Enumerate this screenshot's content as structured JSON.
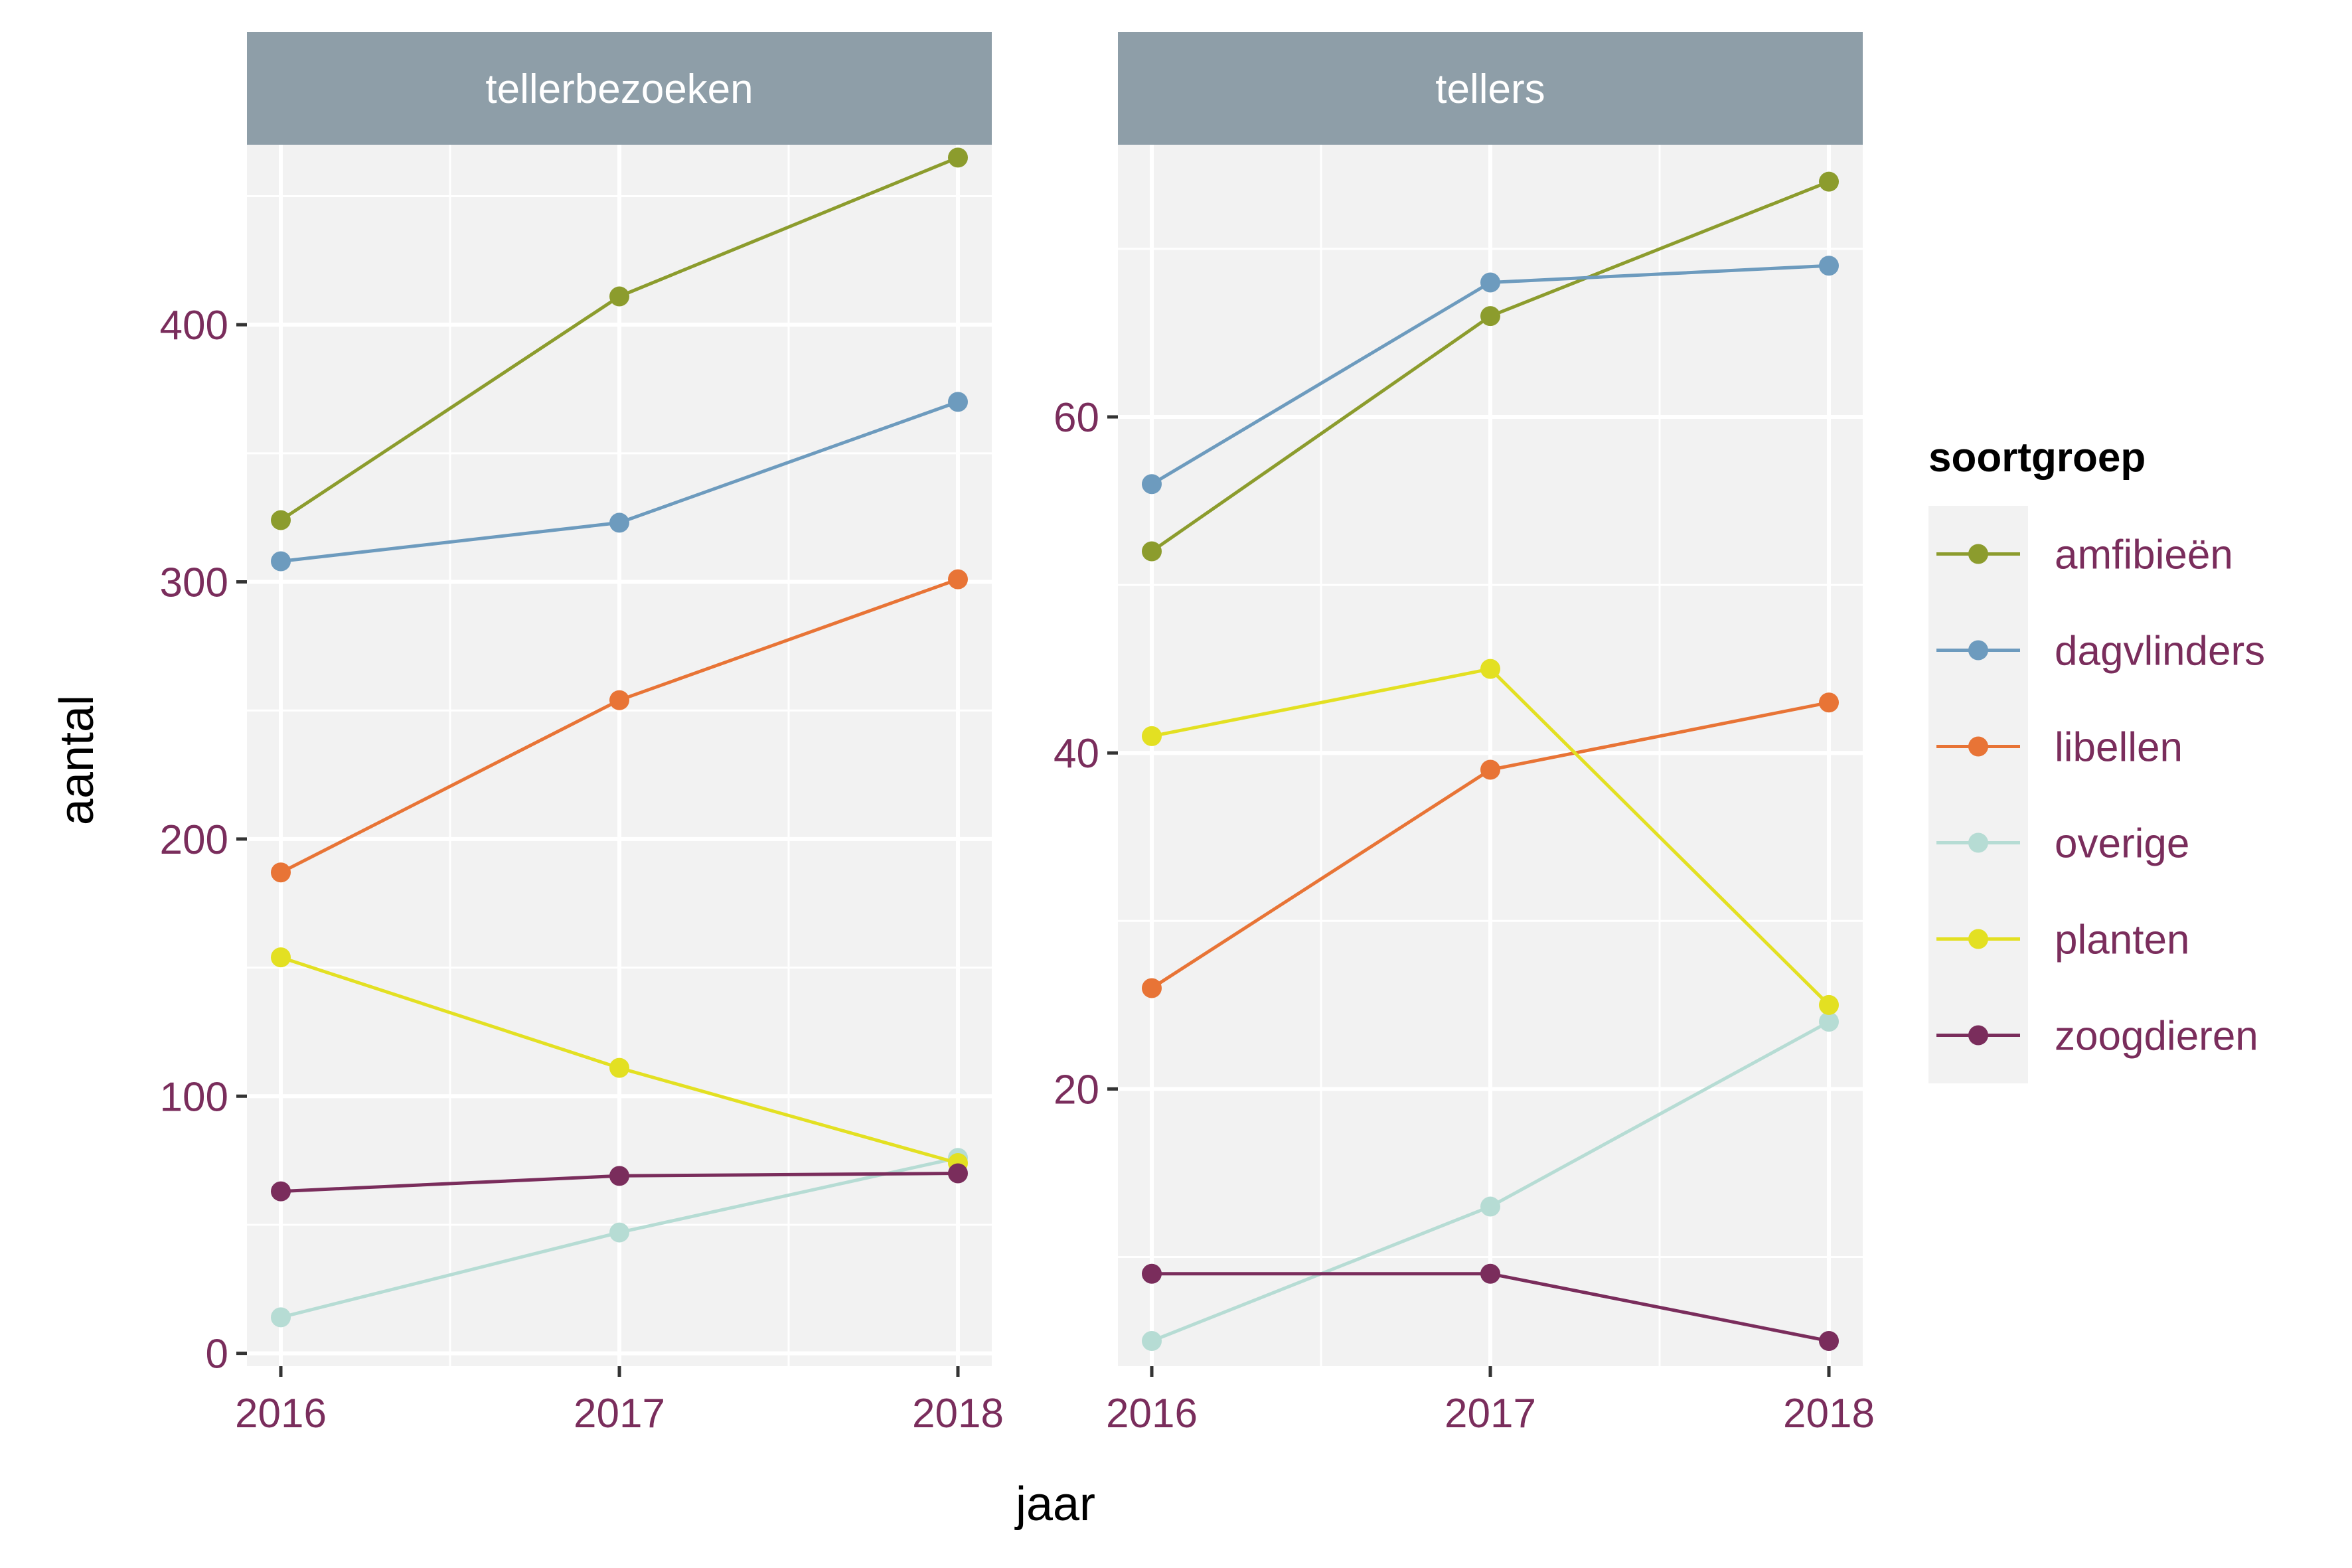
{
  "chart_data": {
    "type": "line",
    "xlabel": "jaar",
    "ylabel": "aantal",
    "x": [
      2016,
      2017,
      2018
    ],
    "x_tick_labels": [
      "2016",
      "2017",
      "2018"
    ],
    "legend": {
      "title": "soortgroep",
      "placement": "right"
    },
    "grid": true,
    "series_styles": [
      {
        "name": "amfibieën",
        "color": "#8c9c2d"
      },
      {
        "name": "dagvlinders",
        "color": "#6d9bbe"
      },
      {
        "name": "libellen",
        "color": "#e87436"
      },
      {
        "name": "overige",
        "color": "#b6dcd4"
      },
      {
        "name": "planten",
        "color": "#e3e022"
      },
      {
        "name": "zoogdieren",
        "color": "#7a2d5c"
      }
    ],
    "panels": [
      {
        "title": "tellerbezoeken",
        "ylim": [
          -5,
          470
        ],
        "y_ticks": [
          0,
          100,
          200,
          300,
          400
        ],
        "y_tick_labels": [
          "0",
          "100",
          "200",
          "300",
          "400"
        ],
        "series": [
          {
            "name": "amfibieën",
            "values": [
              324,
              411,
              465
            ]
          },
          {
            "name": "dagvlinders",
            "values": [
              308,
              323,
              370
            ]
          },
          {
            "name": "libellen",
            "values": [
              187,
              254,
              301
            ]
          },
          {
            "name": "overige",
            "values": [
              14,
              47,
              76
            ]
          },
          {
            "name": "planten",
            "values": [
              154,
              111,
              74
            ]
          },
          {
            "name": "zoogdieren",
            "values": [
              63,
              69,
              70
            ]
          }
        ]
      },
      {
        "title": "tellers",
        "ylim": [
          3.5,
          76.2
        ],
        "y_ticks": [
          20,
          40,
          60
        ],
        "y_tick_labels": [
          "20",
          "40",
          "60"
        ],
        "series": [
          {
            "name": "amfibieën",
            "values": [
              52,
              66,
              74
            ]
          },
          {
            "name": "dagvlinders",
            "values": [
              56,
              68,
              69
            ]
          },
          {
            "name": "libellen",
            "values": [
              26,
              39,
              43
            ]
          },
          {
            "name": "overige",
            "values": [
              5,
              13,
              24
            ]
          },
          {
            "name": "planten",
            "values": [
              41,
              45,
              25
            ]
          },
          {
            "name": "zoogdieren",
            "values": [
              9,
              9,
              5
            ]
          }
        ]
      }
    ]
  }
}
